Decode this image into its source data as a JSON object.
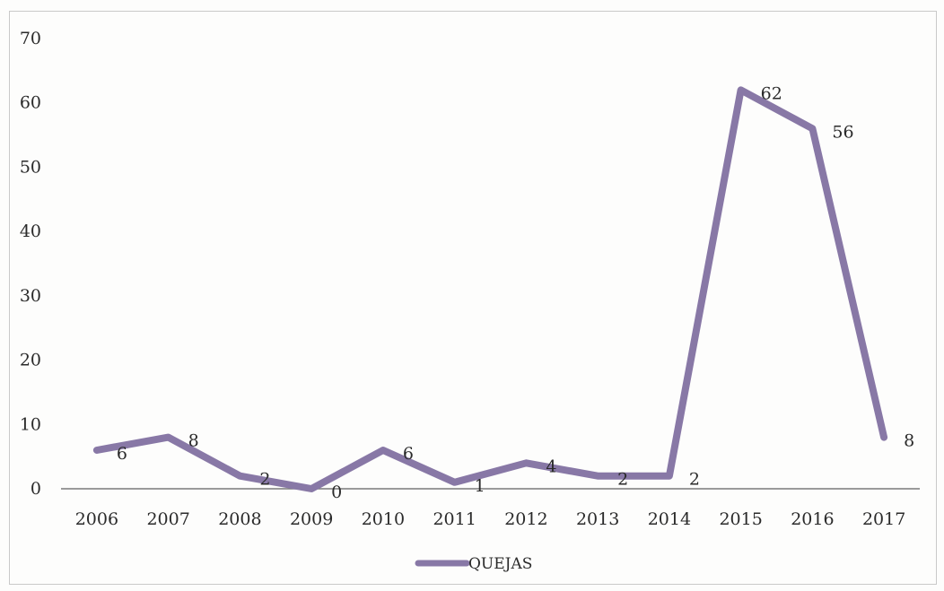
{
  "chart_data": {
    "type": "line",
    "categories": [
      "2006",
      "2007",
      "2008",
      "2009",
      "2010",
      "2011",
      "2012",
      "2013",
      "2014",
      "2015",
      "2016",
      "2017"
    ],
    "series": [
      {
        "name": "QUEJAS",
        "values": [
          6,
          8,
          2,
          0,
          6,
          1,
          4,
          2,
          2,
          62,
          56,
          8
        ]
      }
    ],
    "ylim": [
      0,
      70
    ],
    "yticks": [
      0,
      10,
      20,
      30,
      40,
      50,
      60,
      70
    ],
    "grid": false,
    "legend": "bottom",
    "color": "#8878a6"
  }
}
